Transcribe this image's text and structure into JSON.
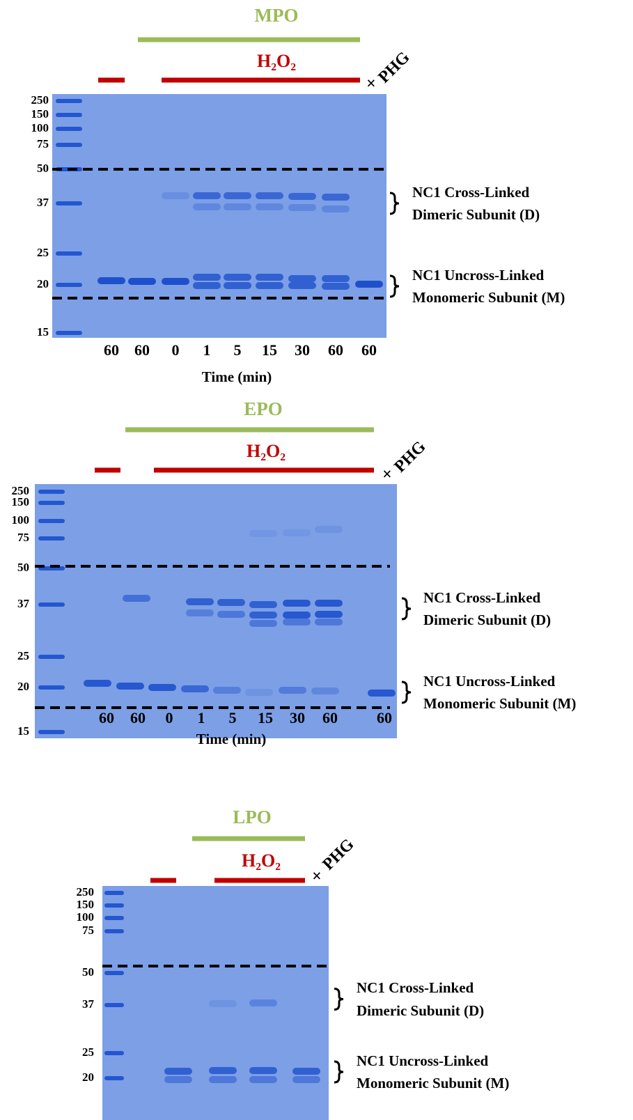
{
  "panels": [
    {
      "enzyme": "MPO",
      "treatment": "H₂O₂",
      "inhibitor_mark": "×",
      "inhibitor": "PHG",
      "markers": [
        "250",
        "150",
        "100",
        "75",
        "50",
        "37",
        "25",
        "20",
        "15"
      ],
      "lanes": [
        "60",
        "60",
        "0",
        "1",
        "5",
        "15",
        "30",
        "60",
        "60"
      ],
      "x_axis_title": "Time (min)",
      "annotations": [
        {
          "lines": [
            "NC1 Cross-Linked",
            "Dimeric Subunit (D)"
          ]
        },
        {
          "lines": [
            "NC1 Uncross-Linked",
            "Monomeric Subunit (M)"
          ]
        }
      ]
    },
    {
      "enzyme": "EPO",
      "treatment": "H₂O₂",
      "inhibitor_mark": "×",
      "inhibitor": "PHG",
      "markers": [
        "250",
        "150",
        "100",
        "75",
        "50",
        "37",
        "25",
        "20",
        "15"
      ],
      "lanes": [
        "60",
        "60",
        "0",
        "1",
        "5",
        "15",
        "30",
        "60",
        "60"
      ],
      "x_axis_title": "Time (min)",
      "annotations": [
        {
          "lines": [
            "NC1 Cross-Linked",
            "Dimeric Subunit (D)"
          ]
        },
        {
          "lines": [
            "NC1 Uncross-Linked",
            "Monomeric Subunit (M)"
          ]
        }
      ]
    },
    {
      "enzyme": "LPO",
      "treatment": "H₂O₂",
      "inhibitor_mark": "×",
      "inhibitor": "PHG",
      "markers": [
        "250",
        "150",
        "100",
        "75",
        "50",
        "37",
        "25",
        "20"
      ],
      "annotations": [
        {
          "lines": [
            "NC1 Cross-Linked",
            "Dimeric Subunit (D)"
          ]
        },
        {
          "lines": [
            "NC1 Uncross-Linked",
            "Monomeric Subunit (M)"
          ]
        }
      ]
    }
  ]
}
